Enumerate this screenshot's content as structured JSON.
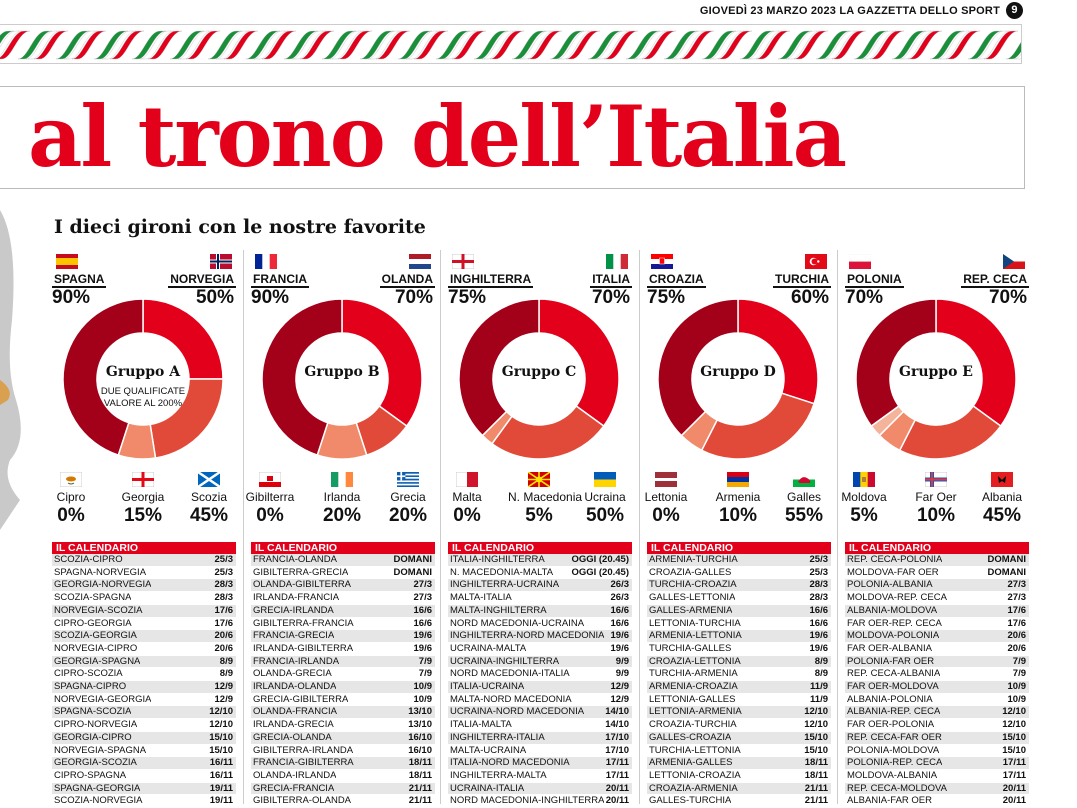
{
  "header": {
    "date_line": "GIOVEDÌ 23 MARZO 2023 LA GAZZETTA DELLO SPORT",
    "page": "9"
  },
  "headline": "al trono dell’Italia",
  "subtitle": "I dieci gironi con le nostre favorite",
  "colors": {
    "red": "#e3001b",
    "dark": "#a3001a",
    "mid": "#e14a38",
    "light": "#f08a6a"
  },
  "groups": [
    {
      "label": "Gruppo A",
      "sub1": "DUE QUALIFICATE",
      "sub2": "VALORE AL 200%",
      "fav1": {
        "name": "SPAGNA",
        "pct": "90%",
        "flag": "es"
      },
      "fav2": {
        "name": "NORVEGIA",
        "pct": "50%",
        "flag": "no"
      },
      "others": [
        {
          "name": "Cipro",
          "pct": "0%",
          "flag": "cy"
        },
        {
          "name": "Georgia",
          "pct": "15%",
          "flag": "ge"
        },
        {
          "name": "Scozia",
          "pct": "45%",
          "flag": "sc"
        }
      ],
      "cal_title": "IL CALENDARIO",
      "matches": [
        [
          "SCOZIA-CIPRO",
          "25/3"
        ],
        [
          "SPAGNA-NORVEGIA",
          "25/3"
        ],
        [
          "GEORGIA-NORVEGIA",
          "28/3"
        ],
        [
          "SCOZIA-SPAGNA",
          "28/3"
        ],
        [
          "NORVEGIA-SCOZIA",
          "17/6"
        ],
        [
          "CIPRO-GEORGIA",
          "17/6"
        ],
        [
          "SCOZIA-GEORGIA",
          "20/6"
        ],
        [
          "NORVEGIA-CIPRO",
          "20/6"
        ],
        [
          "GEORGIA-SPAGNA",
          "8/9"
        ],
        [
          "CIPRO-SCOZIA",
          "8/9"
        ],
        [
          "SPAGNA-CIPRO",
          "12/9"
        ],
        [
          "NORVEGIA-GEORGIA",
          "12/9"
        ],
        [
          "SPAGNA-SCOZIA",
          "12/10"
        ],
        [
          "CIPRO-NORVEGIA",
          "12/10"
        ],
        [
          "GEORGIA-CIPRO",
          "15/10"
        ],
        [
          "NORVEGIA-SPAGNA",
          "15/10"
        ],
        [
          "GEORGIA-SCOZIA",
          "16/11"
        ],
        [
          "CIPRO-SPAGNA",
          "16/11"
        ],
        [
          "SPAGNA-GEORGIA",
          "19/11"
        ],
        [
          "SCOZIA-NORVEGIA",
          "19/11"
        ]
      ]
    },
    {
      "label": "Gruppo B",
      "sub1": "",
      "sub2": "",
      "fav1": {
        "name": "FRANCIA",
        "pct": "90%",
        "flag": "fr"
      },
      "fav2": {
        "name": "OLANDA",
        "pct": "70%",
        "flag": "nl"
      },
      "others": [
        {
          "name": "Gibilterra",
          "pct": "0%",
          "flag": "gi"
        },
        {
          "name": "Irlanda",
          "pct": "20%",
          "flag": "ie"
        },
        {
          "name": "Grecia",
          "pct": "20%",
          "flag": "gr"
        }
      ],
      "cal_title": "IL CALENDARIO",
      "matches": [
        [
          "FRANCIA-OLANDA",
          "DOMANI"
        ],
        [
          "GIBILTERRA-GRECIA",
          "DOMANI"
        ],
        [
          "OLANDA-GIBILTERRA",
          "27/3"
        ],
        [
          "IRLANDA-FRANCIA",
          "27/3"
        ],
        [
          "GRECIA-IRLANDA",
          "16/6"
        ],
        [
          "GIBILTERRA-FRANCIA",
          "16/6"
        ],
        [
          "FRANCIA-GRECIA",
          "19/6"
        ],
        [
          "IRLANDA-GIBILTERRA",
          "19/6"
        ],
        [
          "FRANCIA-IRLANDA",
          "7/9"
        ],
        [
          "OLANDA-GRECIA",
          "7/9"
        ],
        [
          "IRLANDA-OLANDA",
          "10/9"
        ],
        [
          "GRECIA-GIBILTERRA",
          "10/9"
        ],
        [
          "OLANDA-FRANCIA",
          "13/10"
        ],
        [
          "IRLANDA-GRECIA",
          "13/10"
        ],
        [
          "GRECIA-OLANDA",
          "16/10"
        ],
        [
          "GIBILTERRA-IRLANDA",
          "16/10"
        ],
        [
          "FRANCIA-GIBILTERRA",
          "18/11"
        ],
        [
          "OLANDA-IRLANDA",
          "18/11"
        ],
        [
          "GRECIA-FRANCIA",
          "21/11"
        ],
        [
          "GIBILTERRA-OLANDA",
          "21/11"
        ]
      ]
    },
    {
      "label": "Gruppo C",
      "sub1": "",
      "sub2": "",
      "fav1": {
        "name": "INGHILTERRA",
        "pct": "75%",
        "flag": "en"
      },
      "fav2": {
        "name": "ITALIA",
        "pct": "70%",
        "flag": "it"
      },
      "others": [
        {
          "name": "Malta",
          "pct": "0%",
          "flag": "mt"
        },
        {
          "name": "N. Macedonia",
          "pct": "5%",
          "flag": "mk"
        },
        {
          "name": "Ucraina",
          "pct": "50%",
          "flag": "ua"
        }
      ],
      "cal_title": "IL CALENDARIO",
      "matches": [
        [
          "ITALIA-INGHILTERRA",
          "OGGI (20.45)"
        ],
        [
          "N. MACEDONIA-MALTA",
          "OGGI (20.45)"
        ],
        [
          "INGHILTERRA-UCRAINA",
          "26/3"
        ],
        [
          "MALTA-ITALIA",
          "26/3"
        ],
        [
          "MALTA-INGHILTERRA",
          "16/6"
        ],
        [
          "NORD MACEDONIA-UCRAINA",
          "16/6"
        ],
        [
          "INGHILTERRA-NORD MACEDONIA",
          "19/6"
        ],
        [
          "UCRAINA-MALTA",
          "19/6"
        ],
        [
          "UCRAINA-INGHILTERRA",
          "9/9"
        ],
        [
          "NORD MACEDONIA-ITALIA",
          "9/9"
        ],
        [
          "ITALIA-UCRAINA",
          "12/9"
        ],
        [
          "MALTA-NORD MACEDONIA",
          "12/9"
        ],
        [
          "UCRAINA-NORD MACEDONIA",
          "14/10"
        ],
        [
          "ITALIA-MALTA",
          "14/10"
        ],
        [
          "INGHILTERRA-ITALIA",
          "17/10"
        ],
        [
          "MALTA-UCRAINA",
          "17/10"
        ],
        [
          "ITALIA-NORD MACEDONIA",
          "17/11"
        ],
        [
          "INGHILTERRA-MALTA",
          "17/11"
        ],
        [
          "UCRAINA-ITALIA",
          "20/11"
        ],
        [
          "NORD MACEDONIA-INGHILTERRA",
          "20/11"
        ]
      ]
    },
    {
      "label": "Gruppo D",
      "sub1": "",
      "sub2": "",
      "fav1": {
        "name": "CROAZIA",
        "pct": "75%",
        "flag": "hr"
      },
      "fav2": {
        "name": "TURCHIA",
        "pct": "60%",
        "flag": "tr"
      },
      "others": [
        {
          "name": "Lettonia",
          "pct": "0%",
          "flag": "lv"
        },
        {
          "name": "Armenia",
          "pct": "10%",
          "flag": "am"
        },
        {
          "name": "Galles",
          "pct": "55%",
          "flag": "wa"
        }
      ],
      "cal_title": "IL CALENDARIO",
      "matches": [
        [
          "ARMENIA-TURCHIA",
          "25/3"
        ],
        [
          "CROAZIA-GALLES",
          "25/3"
        ],
        [
          "TURCHIA-CROAZIA",
          "28/3"
        ],
        [
          "GALLES-LETTONIA",
          "28/3"
        ],
        [
          "GALLES-ARMENIA",
          "16/6"
        ],
        [
          "LETTONIA-TURCHIA",
          "16/6"
        ],
        [
          "ARMENIA-LETTONIA",
          "19/6"
        ],
        [
          "TURCHIA-GALLES",
          "19/6"
        ],
        [
          "CROAZIA-LETTONIA",
          "8/9"
        ],
        [
          "TURCHIA-ARMENIA",
          "8/9"
        ],
        [
          "ARMENIA-CROAZIA",
          "11/9"
        ],
        [
          "LETTONIA-GALLES",
          "11/9"
        ],
        [
          "LETTONIA-ARMENIA",
          "12/10"
        ],
        [
          "CROAZIA-TURCHIA",
          "12/10"
        ],
        [
          "GALLES-CROAZIA",
          "15/10"
        ],
        [
          "TURCHIA-LETTONIA",
          "15/10"
        ],
        [
          "ARMENIA-GALLES",
          "18/11"
        ],
        [
          "LETTONIA-CROAZIA",
          "18/11"
        ],
        [
          "CROAZIA-ARMENIA",
          "21/11"
        ],
        [
          "GALLES-TURCHIA",
          "21/11"
        ]
      ]
    },
    {
      "label": "Gruppo E",
      "sub1": "",
      "sub2": "",
      "fav1": {
        "name": "POLONIA",
        "pct": "70%",
        "flag": "pl"
      },
      "fav2": {
        "name": "REP. CECA",
        "pct": "70%",
        "flag": "cz"
      },
      "others": [
        {
          "name": "Moldova",
          "pct": "5%",
          "flag": "md"
        },
        {
          "name": "Far Oer",
          "pct": "10%",
          "flag": "fo"
        },
        {
          "name": "Albania",
          "pct": "45%",
          "flag": "al"
        }
      ],
      "cal_title": "IL CALENDARIO",
      "matches": [
        [
          "REP. CECA-POLONIA",
          "DOMANI"
        ],
        [
          "MOLDOVA-FAR OER",
          "DOMANI"
        ],
        [
          "POLONIA-ALBANIA",
          "27/3"
        ],
        [
          "MOLDOVA-REP. CECA",
          "27/3"
        ],
        [
          "ALBANIA-MOLDOVA",
          "17/6"
        ],
        [
          "FAR OER-REP. CECA",
          "17/6"
        ],
        [
          "MOLDOVA-POLONIA",
          "20/6"
        ],
        [
          "FAR OER-ALBANIA",
          "20/6"
        ],
        [
          "POLONIA-FAR OER",
          "7/9"
        ],
        [
          "REP. CECA-ALBANIA",
          "7/9"
        ],
        [
          "FAR OER-MOLDOVA",
          "10/9"
        ],
        [
          "ALBANIA-POLONIA",
          "10/9"
        ],
        [
          "ALBANIA-REP. CECA",
          "12/10"
        ],
        [
          "FAR OER-POLONIA",
          "12/10"
        ],
        [
          "REP. CECA-FAR OER",
          "15/10"
        ],
        [
          "POLONIA-MOLDOVA",
          "15/10"
        ],
        [
          "POLONIA-REP. CECA",
          "17/11"
        ],
        [
          "MOLDOVA-ALBANIA",
          "17/11"
        ],
        [
          "REP. CECA-MOLDOVA",
          "20/11"
        ],
        [
          "ALBANIA-FAR OER",
          "20/11"
        ]
      ]
    }
  ]
}
